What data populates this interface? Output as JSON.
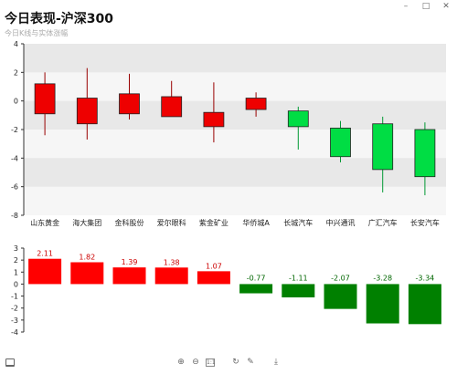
{
  "header": {
    "title": "今日表现-沪深300",
    "subtitle": "今日K线与实体涨幅"
  },
  "window": {
    "controls": [
      "–",
      "□",
      "✕"
    ]
  },
  "toolbar": {
    "icons": [
      "zoom-in-icon",
      "zoom-out-icon",
      "fit-icon",
      "refresh-icon",
      "edit-icon",
      "download-icon"
    ],
    "glyphs": [
      "⊕",
      "⊖",
      "1:1",
      "↻",
      "✎",
      "⤓"
    ]
  },
  "colors": {
    "up": "#ee0000",
    "down": "#00dd44",
    "bar_up": "#ff0000",
    "bar_down": "#008000",
    "label_up": "#cc0000",
    "label_down": "#006600",
    "band": "#e8e8e8",
    "plot_bg": "#f6f6f6"
  },
  "chart_data": [
    {
      "type": "candlestick",
      "categories": [
        "山东黄金",
        "海大集团",
        "金科股份",
        "爱尔眼科",
        "紫金矿业",
        "华侨城A",
        "长城汽车",
        "中兴通讯",
        "广汇汽车",
        "长安汽车"
      ],
      "open": [
        -0.9,
        -1.6,
        -0.9,
        -1.1,
        -1.8,
        -0.6,
        -0.7,
        -1.9,
        -1.6,
        -2.0
      ],
      "close": [
        1.2,
        0.2,
        0.5,
        0.3,
        -0.8,
        0.2,
        -1.8,
        -3.9,
        -4.8,
        -5.3
      ],
      "high": [
        2.0,
        2.3,
        1.9,
        1.4,
        1.3,
        0.6,
        -0.4,
        -1.4,
        -1.1,
        -1.5
      ],
      "low": [
        -2.4,
        -2.7,
        -1.3,
        -1.1,
        -2.9,
        -1.1,
        -3.4,
        -4.3,
        -6.4,
        -6.6
      ],
      "yticks": [
        4,
        2,
        0,
        -2,
        -4,
        -6,
        -8
      ],
      "ylim": [
        -8,
        4
      ],
      "banded_background": true
    },
    {
      "type": "bar",
      "categories": [
        "山东黄金",
        "海大集团",
        "金科股份",
        "爱尔眼科",
        "紫金矿业",
        "华侨城A",
        "长城汽车",
        "中兴通讯",
        "广汇汽车",
        "长安汽车"
      ],
      "values": [
        2.11,
        1.82,
        1.39,
        1.38,
        1.07,
        -0.77,
        -1.11,
        -2.07,
        -3.28,
        -3.34
      ],
      "labels": [
        "2.11",
        "1.82",
        "1.39",
        "1.38",
        "1.07",
        "-0.77",
        "-1.11",
        "-2.07",
        "-3.28",
        "-3.34"
      ],
      "yticks": [
        3,
        2,
        1,
        0,
        -1,
        -2,
        -3,
        -4
      ],
      "ylim": [
        -4,
        3
      ]
    }
  ]
}
